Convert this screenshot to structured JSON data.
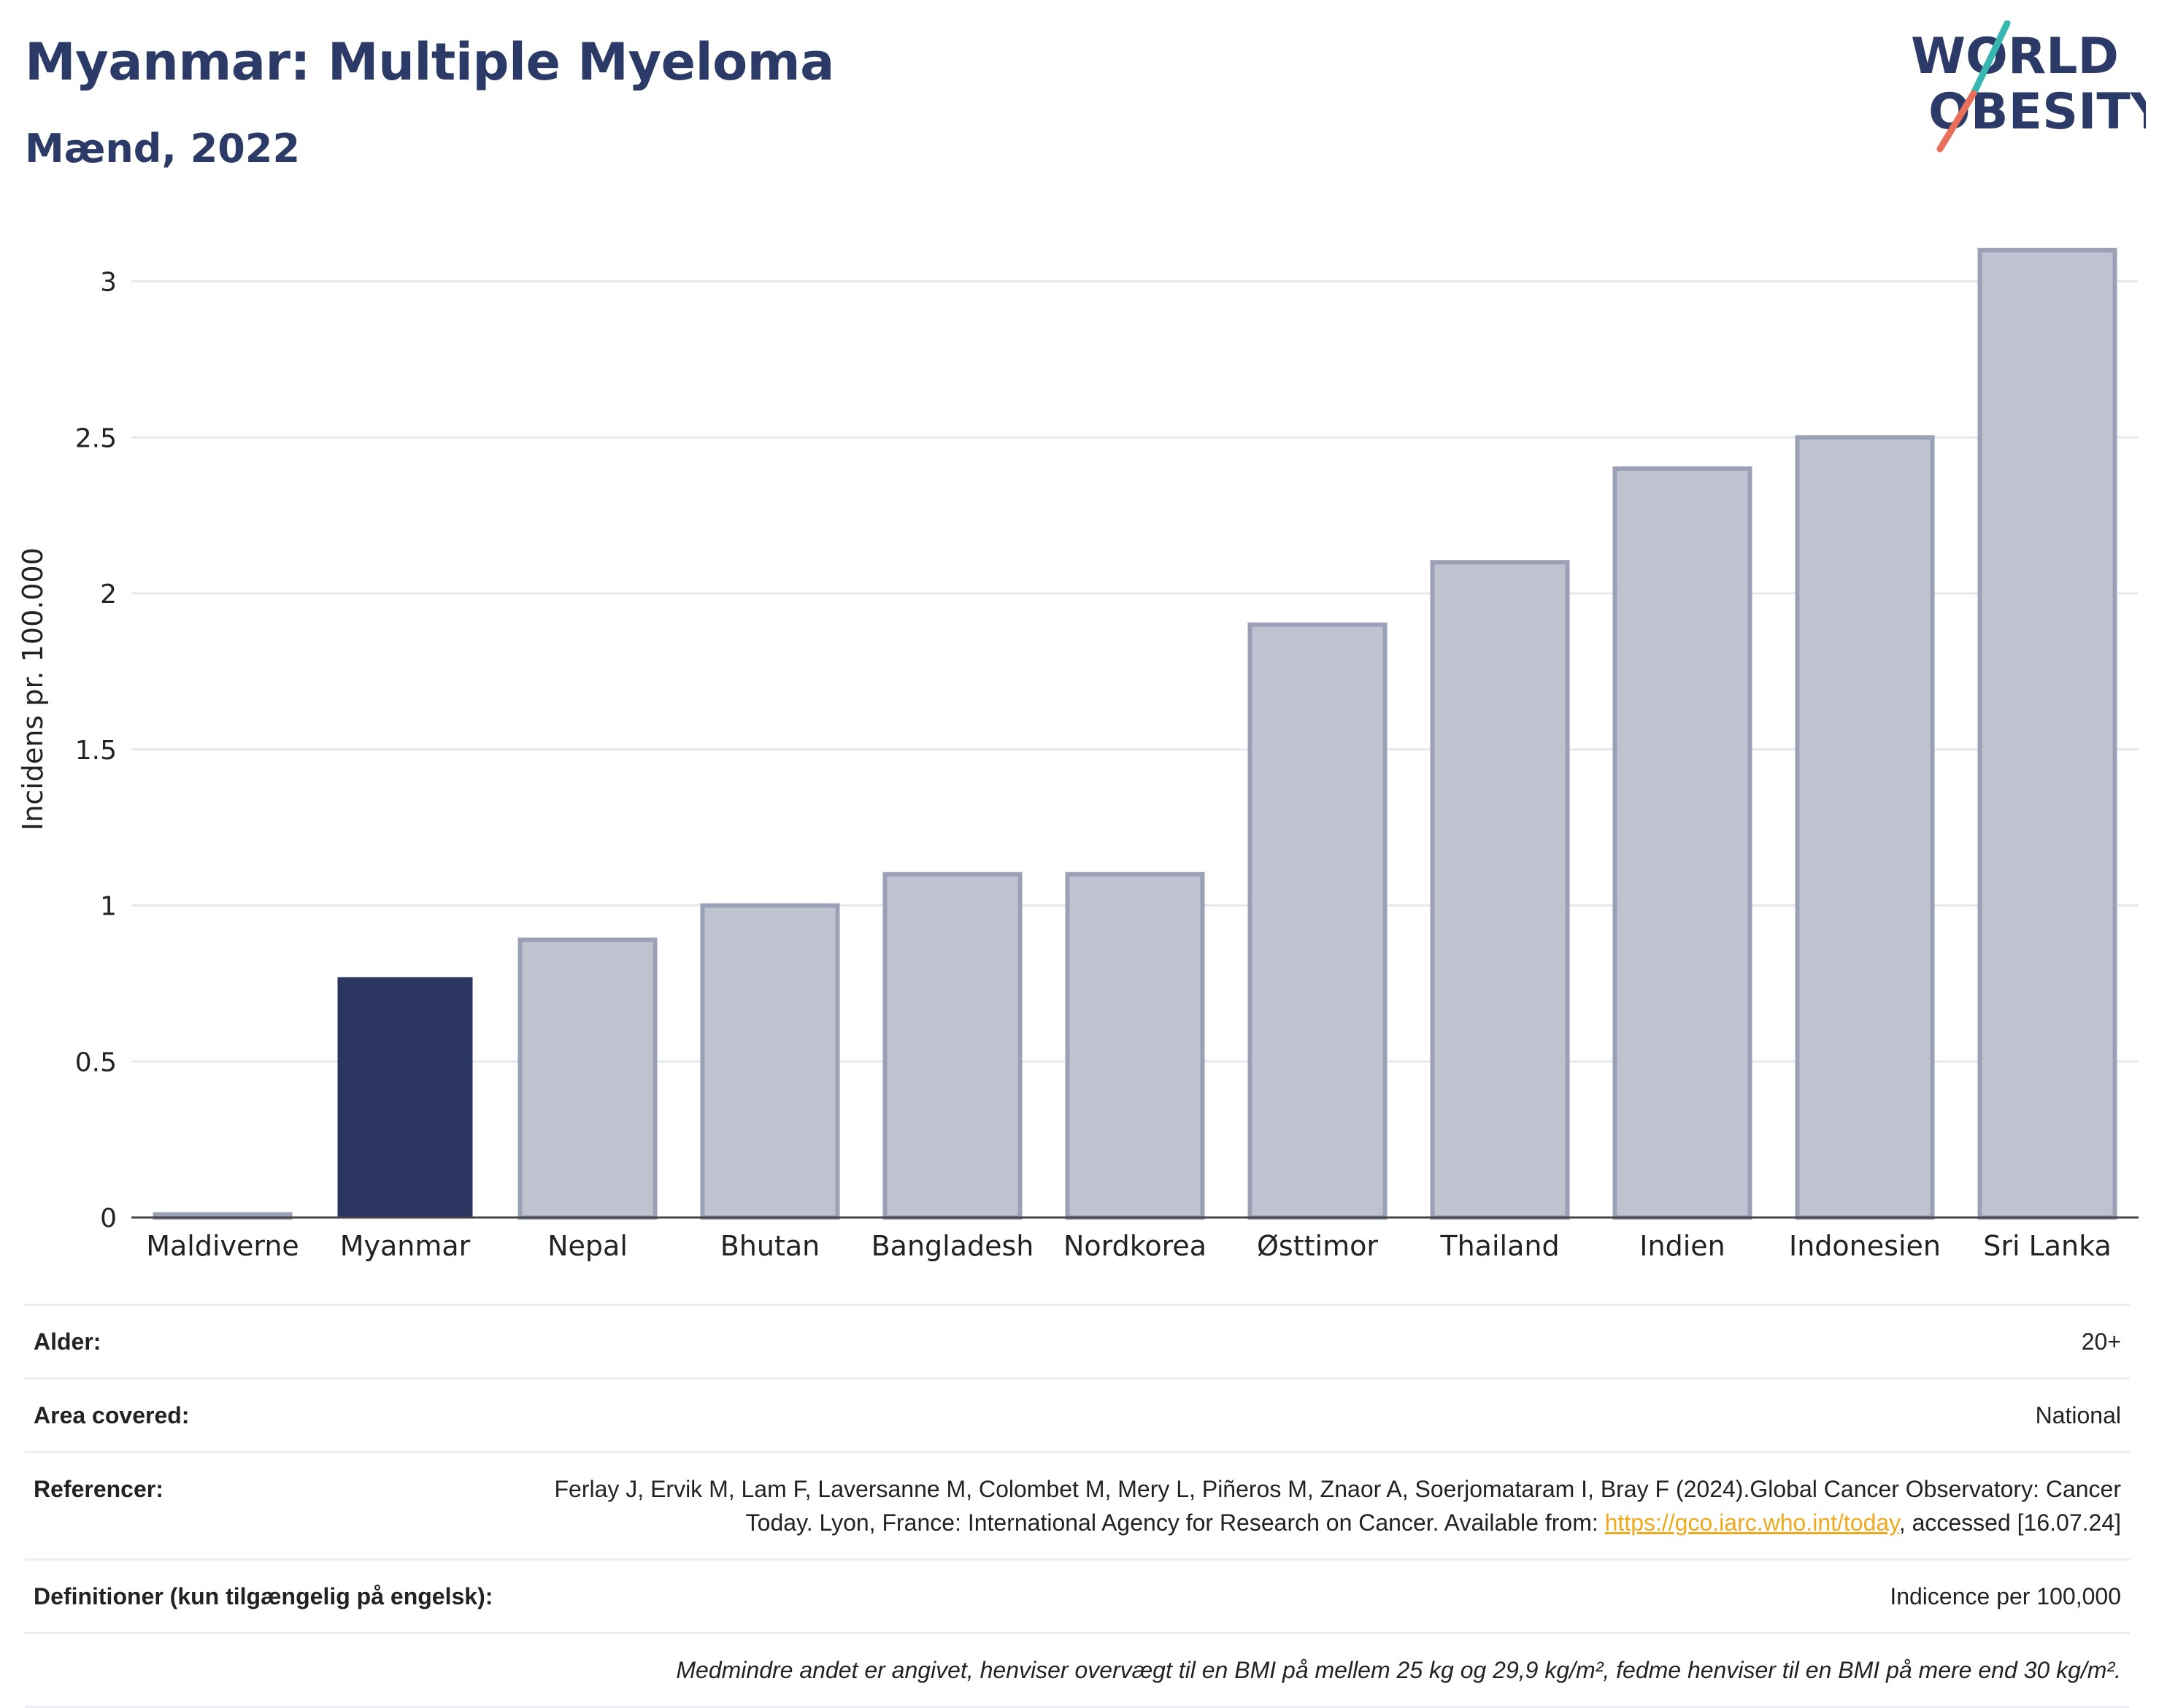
{
  "header": {
    "title": "Myanmar: Multiple Myeloma",
    "subtitle": "Mænd, 2022"
  },
  "logo": {
    "line1": "WORLD",
    "line2": "OBESITY",
    "colors": {
      "text": "#2b3a67",
      "slash_top": "#38b6b0",
      "slash_bottom": "#e8705a"
    }
  },
  "chart_data": {
    "type": "bar",
    "categories": [
      "Maldiverne",
      "Myanmar",
      "Nepal",
      "Bhutan",
      "Bangladesh",
      "Nordkorea",
      "Østtimor",
      "Thailand",
      "Indien",
      "Indonesien",
      "Sri Lanka"
    ],
    "values": [
      0.01,
      0.77,
      0.89,
      1.0,
      1.1,
      1.1,
      1.9,
      2.1,
      2.4,
      2.5,
      3.1
    ],
    "highlight": "Myanmar",
    "ylabel": "Incidens pr. 100.000",
    "ylim": [
      0,
      3.2
    ],
    "yticks": [
      0,
      0.5,
      1,
      1.5,
      2,
      2.5,
      3
    ],
    "ytick_labels": [
      "0",
      "0.5",
      "1",
      "1.5",
      "2",
      "2.5",
      "3"
    ],
    "grid": true,
    "colors": {
      "highlight": "#2b3660",
      "other_fill": "#bfc3cf",
      "other_border": "#9aa0b6"
    }
  },
  "info": {
    "age": {
      "label": "Alder:",
      "value": "20+"
    },
    "area": {
      "label": "Area covered:",
      "value": "National"
    },
    "references": {
      "label": "Referencer:",
      "text_before": "Ferlay J, Ervik M, Lam F, Laversanne M, Colombet M, Mery L, Piñeros M, Znaor A, Soerjomataram I, Bray F (2024).Global Cancer Observatory: Cancer Today. Lyon, France: International Agency for Research on Cancer. Available from: ",
      "link": "https://gco.iarc.who.int/today",
      "text_after": ", accessed [16.07.24]"
    },
    "definitions": {
      "label": "Definitioner (kun tilgængelig på engelsk):",
      "value": "Indicence per 100,000"
    },
    "note": "Medmindre andet er angivet, henviser overvægt til en BMI på mellem 25 kg og 29,9 kg/m², fedme henviser til en BMI på mere end 30 kg/m²."
  }
}
